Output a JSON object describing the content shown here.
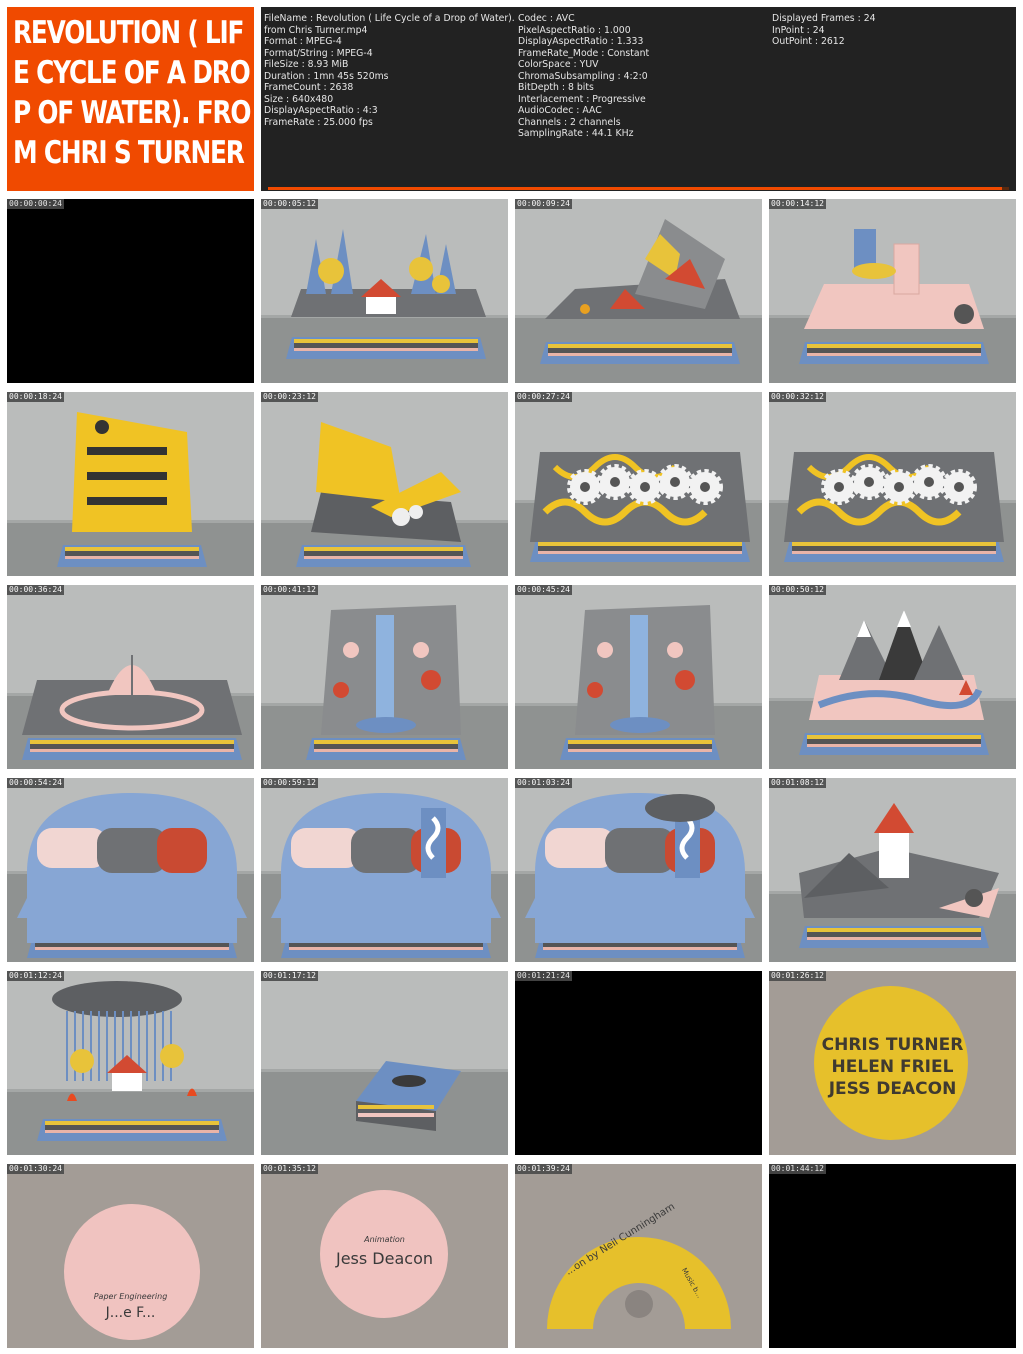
{
  "title": "REVOLUTION ( LIFE CYCLE OF A DROP OF WATER). FROM CHRI S TURNER",
  "info": {
    "col1": [
      "FileName : Revolution ( Life Cycle of a Drop of Water).",
      "from Chris Turner.mp4",
      "Format : MPEG-4",
      "Format/String : MPEG-4",
      "FileSize : 8.93 MiB",
      "Duration : 1mn 45s 520ms",
      "FrameCount : 2638",
      "Size : 640x480",
      "DisplayAspectRatio : 4:3",
      "FrameRate : 25.000 fps"
    ],
    "col2": [
      "Codec : AVC",
      "PixelAspectRatio : 1.000",
      "DisplayAspectRatio : 1.333",
      "FrameRate_Mode : Constant",
      "ColorSpace : YUV",
      "ChromaSubsampling : 4:2:0",
      "BitDepth : 8 bits",
      "Interlacement : Progressive",
      "AudioCodec : AAC",
      "Channels : 2 channels",
      "SamplingRate : 44.1 KHz"
    ],
    "col3": [
      "Displayed Frames : 24",
      "InPoint : 24",
      "OutPoint : 2612"
    ]
  },
  "progress": {
    "fraction": 0.99
  },
  "colors": {
    "accent": "#f04a00",
    "info_bg": "#222222",
    "wall": "#b9bbba",
    "table": "#8e9190"
  },
  "thumbnails": [
    {
      "time": "00:00:00:24",
      "scene": "black"
    },
    {
      "time": "00:00:05:12",
      "scene": "forest-house"
    },
    {
      "time": "00:00:09:24",
      "scene": "forest-fire"
    },
    {
      "time": "00:00:14:12",
      "scene": "pink-machine"
    },
    {
      "time": "00:00:18:24",
      "scene": "yellow-building"
    },
    {
      "time": "00:00:23:12",
      "scene": "yellow-building-fold"
    },
    {
      "time": "00:00:27:24",
      "scene": "gears"
    },
    {
      "time": "00:00:32:12",
      "scene": "gears"
    },
    {
      "time": "00:00:36:24",
      "scene": "leaf"
    },
    {
      "time": "00:00:41:12",
      "scene": "waterfall"
    },
    {
      "time": "00:00:45:24",
      "scene": "waterfall"
    },
    {
      "time": "00:00:50:12",
      "scene": "mountains"
    },
    {
      "time": "00:00:54:24",
      "scene": "blue-dome"
    },
    {
      "time": "00:00:59:12",
      "scene": "blue-dome-wave"
    },
    {
      "time": "00:01:03:24",
      "scene": "blue-dome-cloud"
    },
    {
      "time": "00:01:08:12",
      "scene": "tower"
    },
    {
      "time": "00:01:12:24",
      "scene": "rain-forest"
    },
    {
      "time": "00:01:17:12",
      "scene": "closed-book"
    },
    {
      "time": "00:01:21:24",
      "scene": "black"
    },
    {
      "time": "00:01:26:12",
      "scene": "credits-yellow"
    },
    {
      "time": "00:01:30:24",
      "scene": "credits-pink"
    },
    {
      "time": "00:01:35:12",
      "scene": "credits-animation"
    },
    {
      "time": "00:01:39:24",
      "scene": "credits-music"
    },
    {
      "time": "00:01:44:12",
      "scene": "black"
    }
  ],
  "credits": {
    "names": [
      "CHRIS TURNER",
      "HELEN FRIEL",
      "JESS DEACON"
    ],
    "paper_engineering": "Paper Engineering",
    "paper_engineering_name": "J...e F...",
    "animation_label": "Animation",
    "animation_name": "Jess Deacon",
    "music_by": "...on by Neil Cunningham",
    "music_side": "Music b..."
  }
}
